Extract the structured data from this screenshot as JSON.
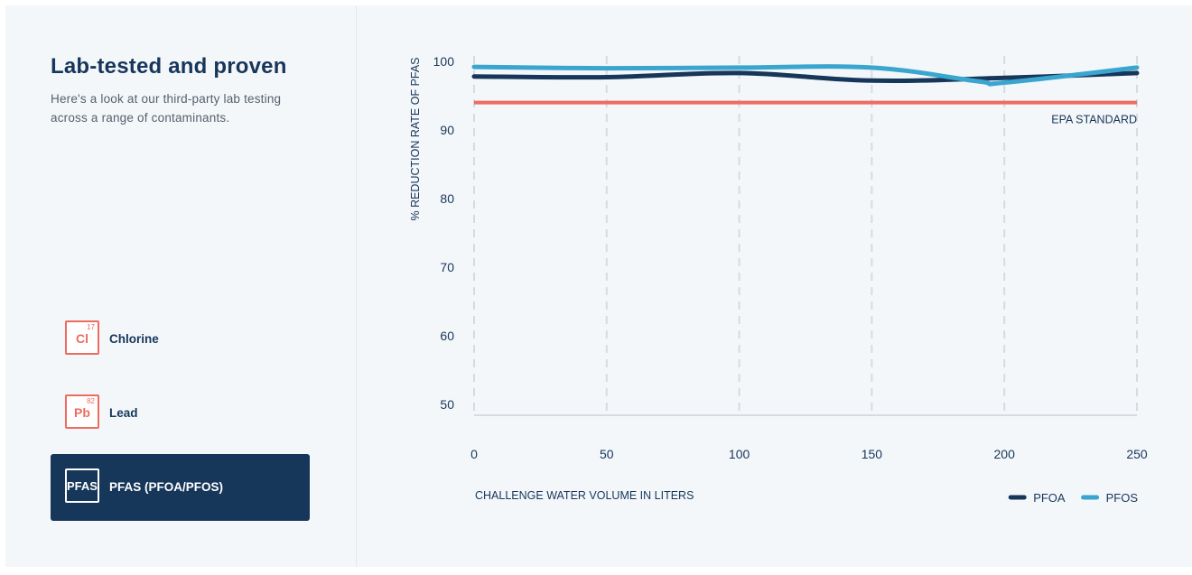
{
  "sidebar": {
    "title": "Lab-tested and proven",
    "subtitle": "Here's a look at our third-party lab testing across a range of contaminants.",
    "items": [
      {
        "symbol": "Cl",
        "number": "17",
        "label": "Chlorine",
        "active": false
      },
      {
        "symbol": "Pb",
        "number": "82",
        "label": "Lead",
        "active": false
      },
      {
        "symbol": "PFAS",
        "number": "",
        "label": "PFAS (PFOA/PFOS)",
        "active": true
      }
    ]
  },
  "colors": {
    "navy": "#16365a",
    "accent": "#ee6b60",
    "pfoa": "#16365a",
    "pfos": "#3aa6cf",
    "epa": "#ee6b60"
  },
  "chart_data": {
    "type": "line",
    "xlabel": "CHALLENGE WATER VOLUME IN LITERS",
    "ylabel": "% REDUCTION RATE OF PFAS",
    "xlim": [
      0,
      250
    ],
    "ylim": [
      50,
      100
    ],
    "x_ticks": [
      "0",
      "50",
      "100",
      "150",
      "200",
      "250"
    ],
    "y_ticks": [
      "100",
      "90",
      "80",
      "70",
      "60",
      "50"
    ],
    "grid": "vertical dashed",
    "legend_position": "bottom-right",
    "series": [
      {
        "name": "PFOA",
        "color": "#16365a",
        "x": [
          0,
          50,
          100,
          150,
          200,
          250
        ],
        "y": [
          97.8,
          97.7,
          98.3,
          97.2,
          97.6,
          98.3
        ]
      },
      {
        "name": "PFOS",
        "color": "#3aa6cf",
        "x": [
          0,
          50,
          100,
          150,
          190,
          200,
          250
        ],
        "y": [
          99.2,
          99.0,
          99.1,
          99.1,
          97.1,
          96.9,
          99.1
        ]
      }
    ],
    "reference_line": {
      "label": "EPA STANDARD",
      "y": 94,
      "color": "#ee6b60"
    }
  }
}
